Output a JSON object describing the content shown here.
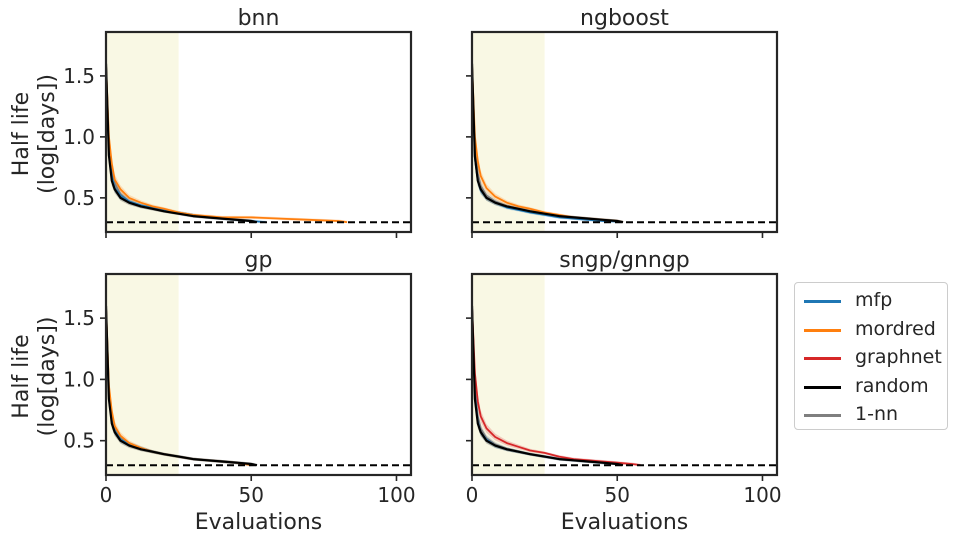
{
  "chart_data": {
    "type": "line",
    "layout": "2x2 grid, shared axes",
    "ylabel": "Half life\n(log[days])",
    "xlabel": "Evaluations",
    "xlim": [
      0,
      105
    ],
    "ylim": [
      0.22,
      1.86
    ],
    "xticks": [
      0,
      50,
      100
    ],
    "yticks": [
      0.5,
      1.0,
      1.5
    ],
    "ytick_labels": [
      "0.5",
      "1.0",
      "1.5"
    ],
    "xtick_labels": [
      "0",
      "50",
      "100"
    ],
    "shaded_region": {
      "x_start": 0,
      "x_end": 25,
      "color": "#f9f8e4"
    },
    "reference_line": {
      "y": 0.3,
      "style": "dashed",
      "color": "#000000"
    },
    "legend": {
      "placement": "right-outside",
      "entries": [
        {
          "name": "mfp",
          "color": "#1f77b4"
        },
        {
          "name": "mordred",
          "color": "#ff7f0e"
        },
        {
          "name": "graphnet",
          "color": "#d62728"
        },
        {
          "name": "random",
          "color": "#000000"
        },
        {
          "name": "1-nn",
          "color": "#7f7f7f"
        }
      ]
    },
    "panels": [
      {
        "title": "bnn",
        "series": [
          {
            "name": "1-nn",
            "x": [
              0,
              1,
              2,
              3,
              5,
              8,
              12,
              16,
              20,
              25,
              30,
              35,
              40,
              45,
              50
            ],
            "y": [
              1.6,
              0.95,
              0.72,
              0.62,
              0.53,
              0.47,
              0.43,
              0.41,
              0.39,
              0.37,
              0.35,
              0.34,
              0.33,
              0.32,
              0.31
            ]
          },
          {
            "name": "mfp",
            "x": [
              0,
              1,
              2,
              3,
              5,
              8,
              12,
              16,
              20,
              25,
              30,
              35,
              40,
              45,
              50,
              55
            ],
            "y": [
              1.6,
              0.88,
              0.68,
              0.58,
              0.52,
              0.47,
              0.44,
              0.42,
              0.4,
              0.38,
              0.36,
              0.34,
              0.33,
              0.32,
              0.31,
              0.3
            ]
          },
          {
            "name": "mordred",
            "x": [
              0,
              1,
              2,
              3,
              5,
              8,
              12,
              16,
              20,
              25,
              30,
              35,
              40,
              50,
              60,
              70,
              80,
              83
            ],
            "y": [
              1.6,
              1.0,
              0.78,
              0.65,
              0.57,
              0.5,
              0.46,
              0.43,
              0.41,
              0.38,
              0.36,
              0.35,
              0.34,
              0.34,
              0.33,
              0.32,
              0.31,
              0.3
            ]
          },
          {
            "name": "random",
            "x": [
              0,
              1,
              2,
              3,
              5,
              8,
              12,
              16,
              20,
              25,
              30,
              35,
              40,
              45,
              50,
              52
            ],
            "y": [
              1.6,
              0.85,
              0.64,
              0.57,
              0.5,
              0.46,
              0.43,
              0.41,
              0.39,
              0.37,
              0.35,
              0.34,
              0.33,
              0.32,
              0.31,
              0.3
            ]
          }
        ]
      },
      {
        "title": "ngboost",
        "series": [
          {
            "name": "1-nn",
            "x": [
              0,
              1,
              2,
              3,
              5,
              8,
              12,
              16,
              20,
              25,
              30,
              35,
              40,
              45,
              50
            ],
            "y": [
              1.6,
              0.92,
              0.7,
              0.6,
              0.52,
              0.47,
              0.43,
              0.41,
              0.39,
              0.37,
              0.35,
              0.34,
              0.33,
              0.32,
              0.31
            ]
          },
          {
            "name": "mfp",
            "x": [
              0,
              1,
              2,
              3,
              5,
              8,
              12,
              16,
              20,
              25,
              30,
              35,
              40,
              45,
              50,
              52
            ],
            "y": [
              1.6,
              0.82,
              0.64,
              0.56,
              0.5,
              0.46,
              0.42,
              0.4,
              0.38,
              0.36,
              0.34,
              0.33,
              0.32,
              0.31,
              0.305,
              0.3
            ]
          },
          {
            "name": "mordred",
            "x": [
              0,
              1,
              2,
              3,
              5,
              8,
              12,
              16,
              20,
              25,
              30,
              35,
              40,
              45,
              50,
              52
            ],
            "y": [
              1.6,
              1.0,
              0.8,
              0.68,
              0.58,
              0.51,
              0.46,
              0.43,
              0.41,
              0.38,
              0.36,
              0.34,
              0.33,
              0.32,
              0.31,
              0.3
            ]
          },
          {
            "name": "random",
            "x": [
              0,
              1,
              2,
              3,
              5,
              8,
              12,
              16,
              20,
              25,
              30,
              35,
              40,
              45,
              50,
              52
            ],
            "y": [
              1.6,
              0.84,
              0.64,
              0.57,
              0.5,
              0.46,
              0.43,
              0.41,
              0.39,
              0.37,
              0.35,
              0.34,
              0.33,
              0.32,
              0.31,
              0.3
            ]
          }
        ]
      },
      {
        "title": "gp",
        "series": [
          {
            "name": "1-nn",
            "x": [
              0,
              1,
              2,
              3,
              5,
              8,
              12,
              16,
              20,
              25,
              30,
              35,
              40,
              45,
              50
            ],
            "y": [
              1.6,
              0.92,
              0.7,
              0.6,
              0.52,
              0.47,
              0.43,
              0.41,
              0.39,
              0.37,
              0.35,
              0.34,
              0.33,
              0.32,
              0.31
            ]
          },
          {
            "name": "mfp",
            "x": [
              0,
              1,
              2,
              3,
              5,
              8,
              12,
              16,
              20,
              25,
              30,
              35,
              40,
              45,
              50
            ],
            "y": [
              1.6,
              0.85,
              0.66,
              0.58,
              0.51,
              0.47,
              0.44,
              0.41,
              0.39,
              0.37,
              0.35,
              0.34,
              0.33,
              0.32,
              0.3
            ]
          },
          {
            "name": "mordred",
            "x": [
              0,
              1,
              2,
              3,
              5,
              8,
              12,
              16,
              20,
              25,
              30,
              35,
              40,
              45,
              50
            ],
            "y": [
              1.6,
              0.95,
              0.74,
              0.62,
              0.54,
              0.48,
              0.44,
              0.41,
              0.39,
              0.37,
              0.35,
              0.34,
              0.33,
              0.32,
              0.3
            ]
          },
          {
            "name": "random",
            "x": [
              0,
              1,
              2,
              3,
              5,
              8,
              12,
              16,
              20,
              25,
              30,
              35,
              40,
              45,
              50,
              52
            ],
            "y": [
              1.6,
              0.84,
              0.64,
              0.57,
              0.5,
              0.46,
              0.43,
              0.41,
              0.39,
              0.37,
              0.35,
              0.34,
              0.33,
              0.32,
              0.31,
              0.3
            ]
          }
        ]
      },
      {
        "title": "sngp/gnngp",
        "series": [
          {
            "name": "1-nn",
            "x": [
              0,
              1,
              2,
              3,
              5,
              8,
              12,
              16,
              20,
              25,
              30,
              35,
              40,
              45,
              50
            ],
            "y": [
              1.6,
              0.92,
              0.7,
              0.6,
              0.52,
              0.47,
              0.43,
              0.41,
              0.39,
              0.37,
              0.35,
              0.34,
              0.33,
              0.32,
              0.31
            ]
          },
          {
            "name": "mfp",
            "x": [
              0,
              1,
              2,
              3,
              5,
              8,
              12,
              16,
              20,
              25,
              30,
              35,
              40,
              45,
              50
            ],
            "y": [
              1.6,
              0.88,
              0.66,
              0.57,
              0.51,
              0.46,
              0.43,
              0.41,
              0.39,
              0.37,
              0.35,
              0.34,
              0.33,
              0.32,
              0.31
            ]
          },
          {
            "name": "graphnet",
            "x": [
              0,
              1,
              2,
              3,
              5,
              8,
              12,
              16,
              20,
              25,
              30,
              35,
              40,
              45,
              50,
              55,
              58
            ],
            "y": [
              1.6,
              1.05,
              0.82,
              0.7,
              0.6,
              0.53,
              0.48,
              0.45,
              0.42,
              0.4,
              0.37,
              0.35,
              0.34,
              0.33,
              0.32,
              0.31,
              0.3
            ]
          },
          {
            "name": "random",
            "x": [
              0,
              1,
              2,
              3,
              5,
              8,
              12,
              16,
              20,
              25,
              30,
              35,
              40,
              45,
              50,
              52
            ],
            "y": [
              1.6,
              0.84,
              0.64,
              0.57,
              0.5,
              0.46,
              0.43,
              0.41,
              0.39,
              0.37,
              0.35,
              0.34,
              0.33,
              0.32,
              0.31,
              0.3
            ]
          }
        ]
      }
    ]
  }
}
